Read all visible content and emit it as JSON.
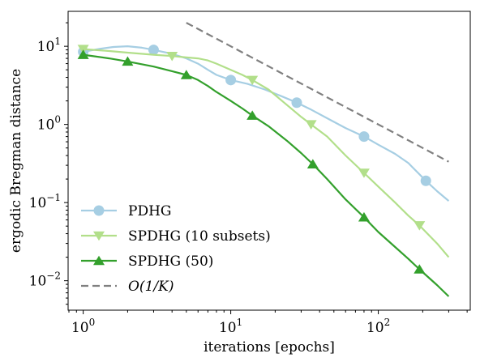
{
  "chart_data": {
    "type": "line",
    "xlabel": "iterations [epochs]",
    "ylabel": "ergodic Bregman distance",
    "xscale": "log",
    "yscale": "log",
    "xlim": [
      0.79,
      420
    ],
    "ylim": [
      0.0042,
      28
    ],
    "x_ticks": [
      {
        "value": 1,
        "base": "10",
        "exp": "0"
      },
      {
        "value": 10,
        "base": "10",
        "exp": "1"
      },
      {
        "value": 100,
        "base": "10",
        "exp": "2"
      }
    ],
    "y_ticks": [
      {
        "value": 0.01,
        "base": "10",
        "exp": "−2"
      },
      {
        "value": 0.1,
        "base": "10",
        "exp": "−1"
      },
      {
        "value": 1,
        "base": "10",
        "exp": "0"
      },
      {
        "value": 10,
        "base": "10",
        "exp": "1"
      }
    ],
    "grid": false,
    "legend_position": "bottom-left",
    "series": [
      {
        "name": "PDHG",
        "color": "#a6cee3",
        "marker": "circle",
        "dash": "solid",
        "x": [
          1,
          1.3,
          1.6,
          2,
          2.5,
          3,
          4,
          5,
          6,
          7,
          8,
          10,
          13,
          17,
          22,
          28,
          35,
          45,
          60,
          80,
          100,
          130,
          160,
          210,
          250,
          300
        ],
        "y": [
          8.5,
          9.3,
          9.8,
          10.0,
          9.6,
          9.0,
          8.0,
          7.0,
          6.0,
          5.0,
          4.3,
          3.7,
          3.3,
          2.8,
          2.3,
          1.9,
          1.55,
          1.2,
          0.9,
          0.7,
          0.55,
          0.42,
          0.32,
          0.19,
          0.14,
          0.105
        ],
        "marker_points": [
          [
            1,
            8.5
          ],
          [
            3,
            9.0
          ],
          [
            10,
            3.7
          ],
          [
            28,
            1.9
          ],
          [
            80,
            0.7
          ],
          [
            210,
            0.19
          ]
        ]
      },
      {
        "name": "SPDHG (10 subsets)",
        "color": "#b2df8a",
        "marker": "triangle-down",
        "dash": "solid",
        "x": [
          1,
          1.5,
          2,
          3,
          4,
          5,
          6,
          7,
          8,
          10,
          12,
          14,
          18,
          23,
          30,
          35,
          45,
          60,
          80,
          100,
          130,
          160,
          190,
          250,
          300
        ],
        "y": [
          9.2,
          8.7,
          8.3,
          7.8,
          7.5,
          7.2,
          7.0,
          6.6,
          6.0,
          5.0,
          4.3,
          3.7,
          2.8,
          1.9,
          1.25,
          1.0,
          0.7,
          0.4,
          0.24,
          0.16,
          0.1,
          0.068,
          0.051,
          0.03,
          0.02
        ],
        "marker_points": [
          [
            1,
            9.2
          ],
          [
            4,
            7.5
          ],
          [
            14,
            3.7
          ],
          [
            35,
            1.0
          ],
          [
            80,
            0.24
          ],
          [
            190,
            0.051
          ]
        ]
      },
      {
        "name": "SPDHG (50)",
        "color": "#33a02c",
        "marker": "triangle-up",
        "dash": "solid",
        "x": [
          1,
          1.5,
          2,
          3,
          4,
          5,
          6,
          7,
          8,
          10,
          12,
          14,
          18,
          24,
          30,
          36,
          45,
          60,
          80,
          100,
          130,
          160,
          190,
          250,
          300
        ],
        "y": [
          7.8,
          7.0,
          6.4,
          5.5,
          4.8,
          4.3,
          3.7,
          3.1,
          2.6,
          2.0,
          1.6,
          1.3,
          0.95,
          0.62,
          0.43,
          0.31,
          0.2,
          0.11,
          0.065,
          0.042,
          0.027,
          0.019,
          0.014,
          0.0088,
          0.0063
        ],
        "marker_points": [
          [
            1,
            7.8
          ],
          [
            2,
            6.4
          ],
          [
            5,
            4.3
          ],
          [
            14,
            1.3
          ],
          [
            36,
            0.31
          ],
          [
            80,
            0.065
          ],
          [
            190,
            0.014
          ]
        ]
      },
      {
        "name": "O(1/K)",
        "color": "#808080",
        "marker": "none",
        "dash": "dashed",
        "x": [
          5,
          300
        ],
        "y": [
          20,
          0.333
        ],
        "marker_points": []
      }
    ]
  }
}
